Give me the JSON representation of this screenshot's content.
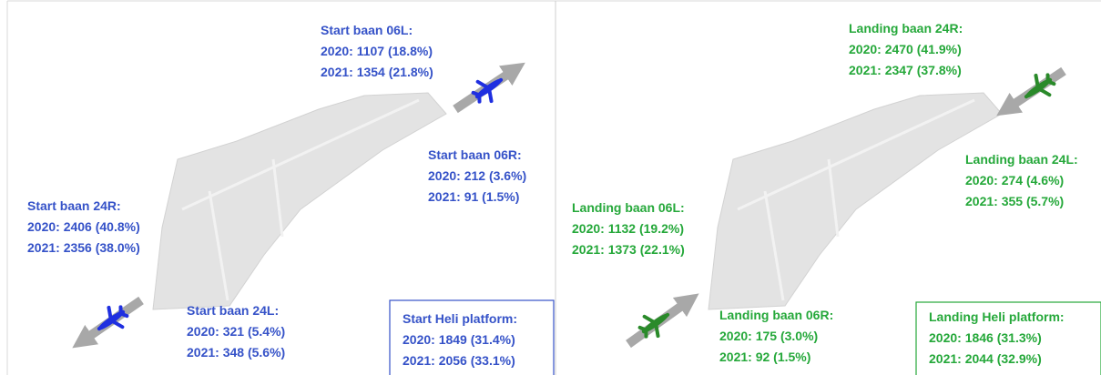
{
  "panels": [
    {
      "labels": [
        {
          "title": "Start baan 06L:",
          "lines": [
            "2020: 1107 (18.8%)",
            "2021: 1354 (21.8%)"
          ]
        },
        {
          "title": "Start baan 06R:",
          "lines": [
            "2020: 212 (3.6%)",
            "2021: 91 (1.5%)"
          ]
        },
        {
          "title": "Start baan 24R:",
          "lines": [
            "2020: 2406 (40.8%)",
            "2021: 2356 (38.0%)"
          ]
        },
        {
          "title": "Start baan 24L:",
          "lines": [
            "2020: 321 (5.4%)",
            "2021: 348 (5.6%)"
          ]
        },
        {
          "title": "Start Heli platform:",
          "lines": [
            "2020: 1849 (31.4%)",
            "2021: 2056 (33.1%)"
          ]
        }
      ]
    },
    {
      "labels": [
        {
          "title": "Landing baan 24R:",
          "lines": [
            "2020: 2470 (41.9%)",
            "2021: 2347 (37.8%)"
          ]
        },
        {
          "title": "Landing baan 24L:",
          "lines": [
            "2020: 274 (4.6%)",
            "2021: 355 (5.7%)"
          ]
        },
        {
          "title": "Landing baan 06L:",
          "lines": [
            "2020: 1132 (19.2%)",
            "2021: 1373 (22.1%)"
          ]
        },
        {
          "title": "Landing baan 06R:",
          "lines": [
            "2020: 175 (3.0%)",
            "2021: 92 (1.5%)"
          ]
        },
        {
          "title": "Landing Heli platform:",
          "lines": [
            "2020: 1846 (31.3%)",
            "2021: 2044 (32.9%)"
          ]
        }
      ]
    }
  ]
}
